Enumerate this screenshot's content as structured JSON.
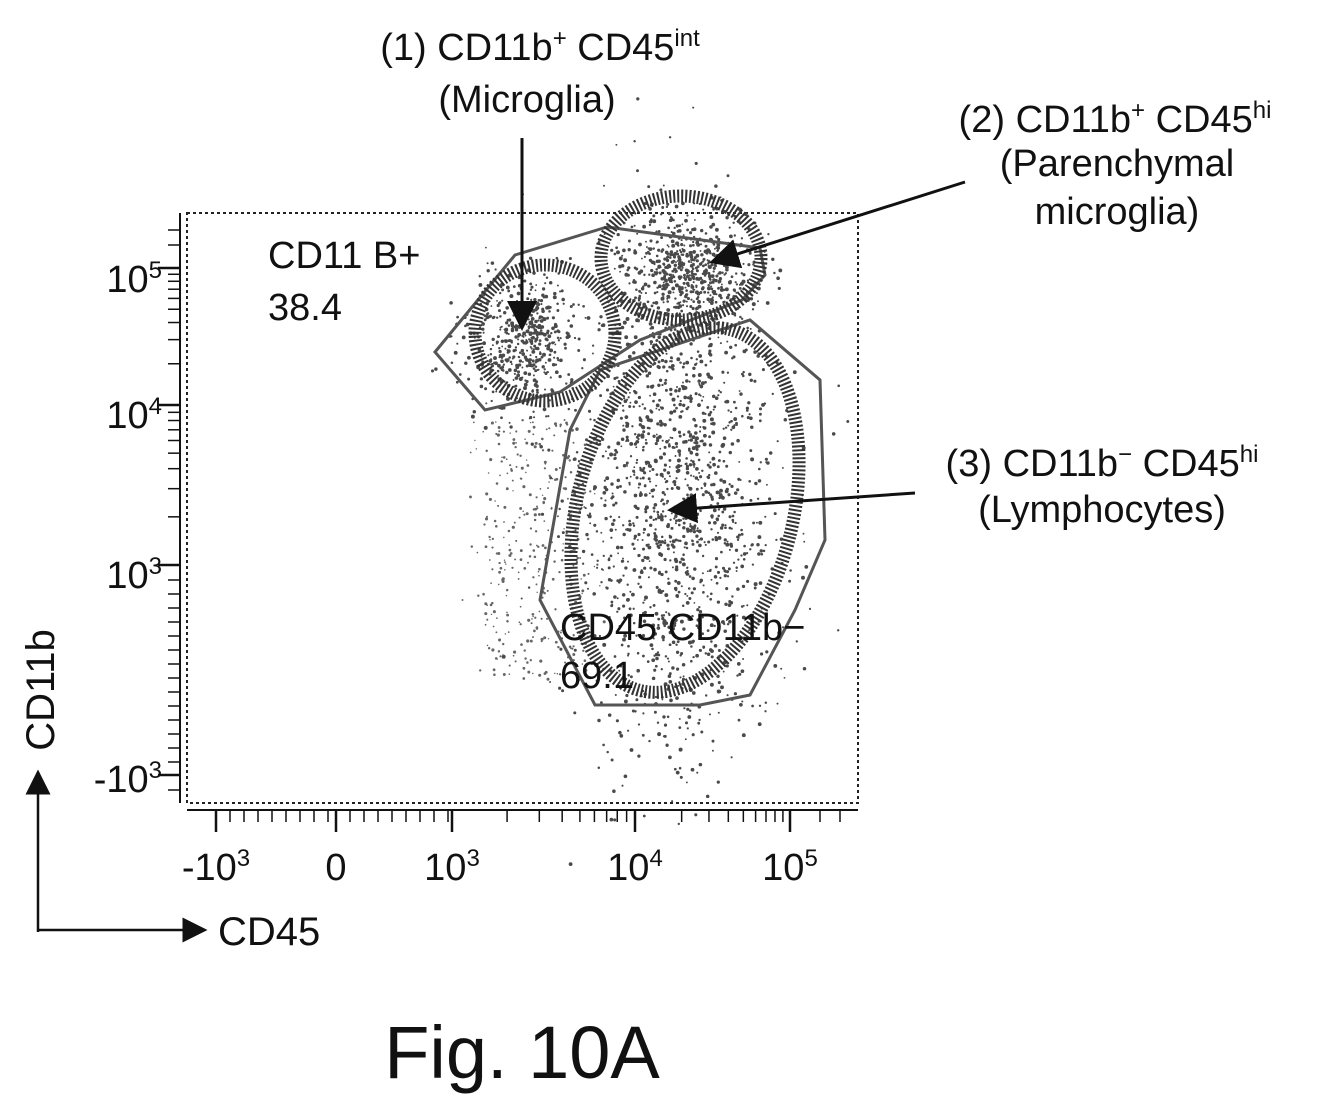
{
  "chart_data": {
    "type": "scatter",
    "subtype": "flow cytometry density plot with gates",
    "xlabel": "CD45",
    "ylabel": "CD11b",
    "x_scale": "biexponential (log)",
    "y_scale": "biexponential (log)",
    "x_tick_labels": [
      {
        "value": -1000,
        "base": "-10",
        "exp": "3"
      },
      {
        "value": 0,
        "base": "0",
        "exp": ""
      },
      {
        "value": 1000,
        "base": "10",
        "exp": "3"
      },
      {
        "value": 10000,
        "base": "10",
        "exp": "4"
      },
      {
        "value": 100000,
        "base": "10",
        "exp": "5"
      }
    ],
    "y_tick_labels": [
      {
        "value": -1000,
        "base": "-10",
        "exp": "3"
      },
      {
        "value": 1000,
        "base": "10",
        "exp": "3"
      },
      {
        "value": 10000,
        "base": "10",
        "exp": "4"
      },
      {
        "value": 100000,
        "base": "10",
        "exp": "5"
      }
    ],
    "gates": [
      {
        "name": "CD11 B+",
        "value": "38.4",
        "shape": "polygon"
      },
      {
        "name": "CD45 CD11b−",
        "value": "69.1",
        "shape": "polygon"
      }
    ],
    "populations": [
      {
        "id": "1",
        "marker": "CD11b",
        "marker_sup": "+",
        "marker2": "CD45",
        "marker2_sup": "int",
        "name": "(Microglia)",
        "center": {
          "x": 2500,
          "y": 30000
        }
      },
      {
        "id": "2",
        "marker": "CD11b",
        "marker_sup": "+",
        "marker2": "CD45",
        "marker2_sup": "hi",
        "name_lines": [
          "(Parenchymal",
          "microglia)"
        ],
        "center": {
          "x": 22000,
          "y": 90000
        }
      },
      {
        "id": "3",
        "marker": "CD11b",
        "marker_sup": "−",
        "marker2": "CD45",
        "marker2_sup": "hi",
        "name": "(Lymphocytes)",
        "center": {
          "x": 18000,
          "y": 2500
        }
      }
    ],
    "grid": false,
    "legend": "none"
  },
  "figure_label": "Fig. 10A",
  "colors": {
    "ink": "#111111",
    "gate": "#555555",
    "dots": "#4a4a4a"
  }
}
